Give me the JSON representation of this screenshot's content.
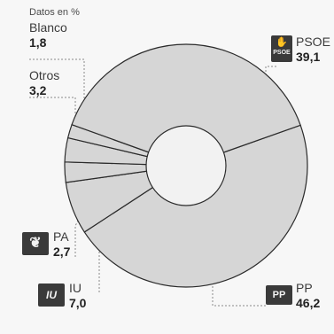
{
  "subtitle": "Datos en %",
  "chart_data": {
    "type": "pie",
    "style": "donut",
    "unit": "%",
    "labels": [
      "PP",
      "PSOE",
      "IU",
      "PA",
      "Otros",
      "Blanco"
    ],
    "values": [
      46.2,
      39.1,
      7.0,
      2.7,
      3.2,
      1.8
    ],
    "value_labels": [
      "46,2",
      "39,1",
      "7,0",
      "2,7",
      "3,2",
      "1,8"
    ],
    "colors": {
      "slice_fill": "#d6d6d6",
      "slice_edge": "#2b2b2b",
      "leader": "#8a8a8a"
    }
  },
  "labels": {
    "blanco": {
      "name": "Blanco",
      "value": "1,8"
    },
    "otros": {
      "name": "Otros",
      "value": "3,2"
    },
    "psoe": {
      "name": "PSOE",
      "value": "39,1",
      "logo_text": "PSOE"
    },
    "pa": {
      "name": "PA",
      "value": "2,7"
    },
    "iu": {
      "name": "IU",
      "value": "7,0",
      "logo_text": "IU"
    },
    "pp": {
      "name": "PP",
      "value": "46,2",
      "logo_text": "PP"
    }
  },
  "icons": [
    "psoe-logo-icon",
    "pa-logo-icon",
    "iu-logo-icon",
    "pp-logo-icon"
  ]
}
